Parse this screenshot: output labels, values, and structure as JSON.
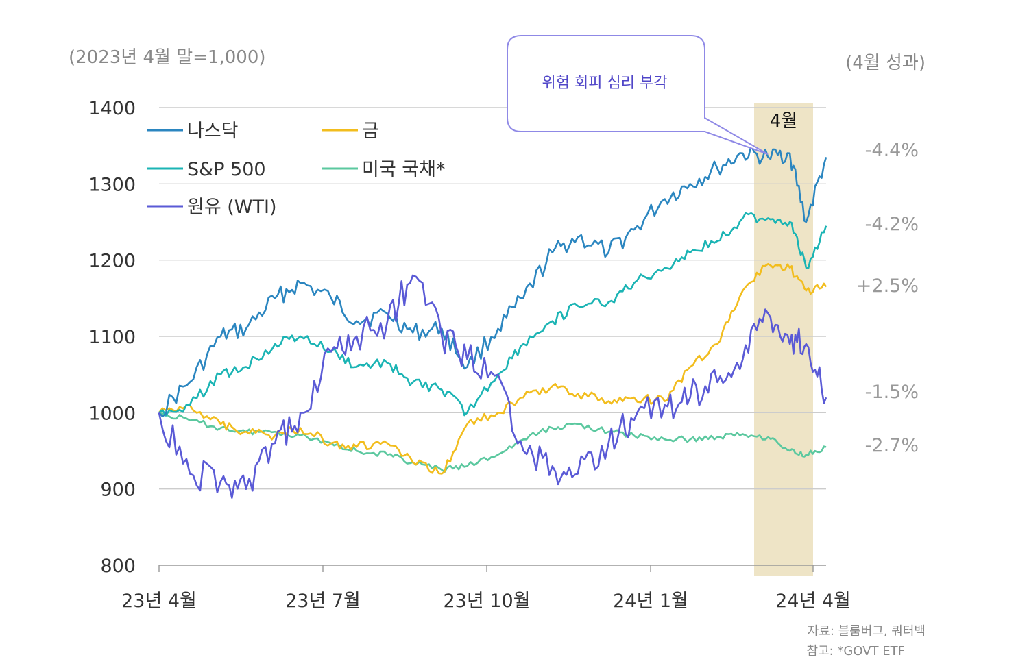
{
  "chart_data": {
    "type": "line",
    "ylabel": "(2023년 4월 말=1,000)",
    "right_label": "(4월 성과)",
    "ylim": [
      800,
      1400
    ],
    "yticks": [
      1400,
      1300,
      1200,
      1100,
      1000,
      900,
      800
    ],
    "yticklabels": [
      "1400",
      "1300",
      "1200",
      "1100",
      "1000",
      "900",
      "800"
    ],
    "xticklabels": [
      "23년 4월",
      "23년 7월",
      "23년 10월",
      "24년 1월",
      "24년 4월"
    ],
    "x": [
      "2023-04-28",
      "2023-05-15",
      "2023-06-01",
      "2023-06-15",
      "2023-07-01",
      "2023-07-15",
      "2023-08-01",
      "2023-08-15",
      "2023-09-01",
      "2023-09-15",
      "2023-10-01",
      "2023-10-15",
      "2023-11-01",
      "2023-11-15",
      "2023-12-01",
      "2023-12-15",
      "2024-01-01",
      "2024-01-15",
      "2024-02-01",
      "2024-02-15",
      "2024-03-01",
      "2024-03-15",
      "2024-03-29",
      "2024-04-10",
      "2024-04-19",
      "2024-04-30"
    ],
    "series": [
      {
        "name": "나스닥",
        "color": "#2b86c0",
        "values": [
          1000,
          1040,
          1100,
          1110,
          1150,
          1170,
          1150,
          1120,
          1130,
          1105,
          1110,
          1060,
          1110,
          1150,
          1210,
          1230,
          1210,
          1240,
          1280,
          1300,
          1320,
          1340,
          1335,
          1340,
          1250,
          1335
        ],
        "april_change": "-4.4%"
      },
      {
        "name": "금",
        "color": "#f2bd1e",
        "values": [
          1000,
          1010,
          985,
          975,
          970,
          980,
          960,
          955,
          960,
          935,
          920,
          985,
          1000,
          1020,
          1035,
          1025,
          1015,
          1020,
          1015,
          1060,
          1090,
          1160,
          1195,
          1190,
          1160,
          1165
        ],
        "april_change": "+2.5%"
      },
      {
        "name": "S&P 500",
        "color": "#1bb4b4",
        "values": [
          1000,
          1010,
          1050,
          1060,
          1090,
          1100,
          1080,
          1060,
          1065,
          1040,
          1030,
          1000,
          1050,
          1090,
          1120,
          1140,
          1145,
          1170,
          1190,
          1210,
          1225,
          1255,
          1255,
          1250,
          1190,
          1245
        ],
        "april_change": "-4.2%"
      },
      {
        "name": "미국 국채*",
        "color": "#5bc89f",
        "values": [
          1000,
          990,
          980,
          975,
          975,
          970,
          960,
          950,
          945,
          935,
          925,
          930,
          945,
          965,
          980,
          985,
          975,
          970,
          965,
          965,
          968,
          972,
          968,
          950,
          945,
          955
        ],
        "april_change": "-2.7%"
      },
      {
        "name": "원유 (WTI)",
        "color": "#5a5ad6",
        "values": [
          1000,
          920,
          910,
          900,
          960,
          1000,
          1080,
          1100,
          1120,
          1180,
          1100,
          1070,
          1050,
          950,
          930,
          920,
          960,
          990,
          1010,
          1020,
          1040,
          1070,
          1130,
          1090,
          1090,
          1020
        ],
        "april_change": "-1.5%"
      }
    ],
    "callout": "위험 회피 심리 부각",
    "highlight_label": "4월",
    "highlight_color": "#eee4c6",
    "grid": "horizontal"
  },
  "footer": {
    "source": "자료: 블룸버그, 쿼터백",
    "note": "참고: *GOVT ETF"
  }
}
